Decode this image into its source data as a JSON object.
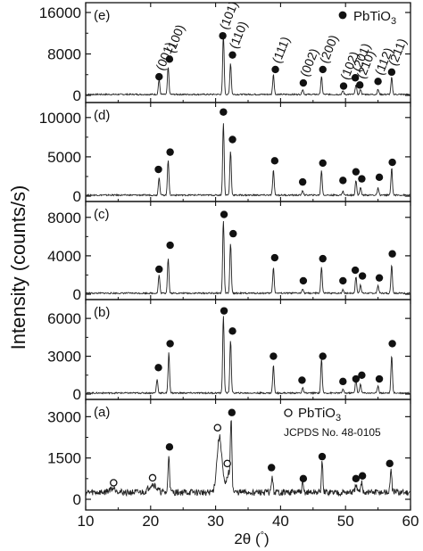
{
  "chart_data": {
    "type": "line",
    "ylabel": "Intensity (counts/s)",
    "xlabel_prefix": "2θ (",
    "xlabel_unit": "°",
    "xlabel_suffix": ")",
    "xlim": [
      10,
      60
    ],
    "x_ticks": [
      10,
      20,
      30,
      40,
      50,
      60
    ],
    "panels": [
      {
        "tag": "(e)",
        "ylim": [
          0,
          16000
        ],
        "y_ticks": [
          0,
          8000,
          16000
        ],
        "legend": "PbTiO",
        "legend_sub": "3",
        "legend_marker": "filled-circle",
        "peaks": [
          {
            "x": 21.3,
            "y": 2900,
            "label": "(001)"
          },
          {
            "x": 22.7,
            "y": 5200,
            "label": "(100)"
          },
          {
            "x": 31.2,
            "y": 11500,
            "label": "(101)"
          },
          {
            "x": 32.3,
            "y": 6000,
            "label": "(110)"
          },
          {
            "x": 38.9,
            "y": 3900,
            "label": "(111)"
          },
          {
            "x": 43.4,
            "y": 1000,
            "label": "(002)"
          },
          {
            "x": 46.3,
            "y": 3400,
            "label": "(200)"
          },
          {
            "x": 49.6,
            "y": 700,
            "label": "(102)"
          },
          {
            "x": 51.6,
            "y": 1900,
            "label": "(201)"
          },
          {
            "x": 52.3,
            "y": 1000,
            "label": "(210)"
          },
          {
            "x": 55.0,
            "y": 1000,
            "label": "(112)"
          },
          {
            "x": 57.1,
            "y": 3300,
            "label": "(211)"
          }
        ],
        "markers": [
          {
            "x": 21.3,
            "y": 3600
          },
          {
            "x": 22.9,
            "y": 7000
          },
          {
            "x": 31.1,
            "y": 11500
          },
          {
            "x": 32.6,
            "y": 7800
          },
          {
            "x": 39.2,
            "y": 5000
          },
          {
            "x": 43.5,
            "y": 2400
          },
          {
            "x": 46.5,
            "y": 5000
          },
          {
            "x": 49.7,
            "y": 1800
          },
          {
            "x": 51.5,
            "y": 3400
          },
          {
            "x": 52.2,
            "y": 2000
          },
          {
            "x": 55.0,
            "y": 2700
          },
          {
            "x": 57.1,
            "y": 4500
          }
        ]
      },
      {
        "tag": "(d)",
        "ylim": [
          0,
          11000
        ],
        "y_ticks": [
          0,
          5000,
          10000
        ],
        "peaks": [
          {
            "x": 21.3,
            "y": 2300
          },
          {
            "x": 22.7,
            "y": 4500
          },
          {
            "x": 31.2,
            "y": 9200
          },
          {
            "x": 32.3,
            "y": 5600
          },
          {
            "x": 38.9,
            "y": 3200
          },
          {
            "x": 43.4,
            "y": 600
          },
          {
            "x": 46.3,
            "y": 3100
          },
          {
            "x": 49.6,
            "y": 500
          },
          {
            "x": 51.6,
            "y": 1900
          },
          {
            "x": 52.3,
            "y": 1000
          },
          {
            "x": 55.0,
            "y": 900
          },
          {
            "x": 57.1,
            "y": 3500
          }
        ],
        "markers": [
          {
            "x": 21.2,
            "y": 3400
          },
          {
            "x": 23.0,
            "y": 5600
          },
          {
            "x": 31.2,
            "y": 10700
          },
          {
            "x": 32.6,
            "y": 7200
          },
          {
            "x": 39.1,
            "y": 4500
          },
          {
            "x": 43.4,
            "y": 1800
          },
          {
            "x": 46.5,
            "y": 4200
          },
          {
            "x": 49.6,
            "y": 2000
          },
          {
            "x": 51.6,
            "y": 3100
          },
          {
            "x": 52.5,
            "y": 2200
          },
          {
            "x": 55.2,
            "y": 2400
          },
          {
            "x": 57.2,
            "y": 4300
          }
        ]
      },
      {
        "tag": "(c)",
        "ylim": [
          0,
          9000
        ],
        "y_ticks": [
          0,
          4000,
          8000
        ],
        "peaks": [
          {
            "x": 21.3,
            "y": 1900
          },
          {
            "x": 22.7,
            "y": 3600
          },
          {
            "x": 31.2,
            "y": 7600
          },
          {
            "x": 32.3,
            "y": 5200
          },
          {
            "x": 38.9,
            "y": 2700
          },
          {
            "x": 43.4,
            "y": 500
          },
          {
            "x": 46.3,
            "y": 2700
          },
          {
            "x": 49.6,
            "y": 400
          },
          {
            "x": 51.6,
            "y": 1700
          },
          {
            "x": 52.3,
            "y": 900
          },
          {
            "x": 55.0,
            "y": 800
          },
          {
            "x": 57.1,
            "y": 3000
          }
        ],
        "markers": [
          {
            "x": 21.3,
            "y": 2600
          },
          {
            "x": 23.0,
            "y": 5100
          },
          {
            "x": 31.3,
            "y": 8300
          },
          {
            "x": 32.7,
            "y": 6300
          },
          {
            "x": 39.1,
            "y": 3800
          },
          {
            "x": 43.5,
            "y": 1400
          },
          {
            "x": 46.5,
            "y": 3700
          },
          {
            "x": 49.6,
            "y": 1400
          },
          {
            "x": 51.5,
            "y": 2500
          },
          {
            "x": 52.6,
            "y": 1900
          },
          {
            "x": 55.2,
            "y": 1700
          },
          {
            "x": 57.2,
            "y": 4200
          }
        ]
      },
      {
        "tag": "(b)",
        "ylim": [
          0,
          7000
        ],
        "y_ticks": [
          0,
          3000,
          6000
        ],
        "peaks": [
          {
            "x": 21.0,
            "y": 1100
          },
          {
            "x": 22.8,
            "y": 3200
          },
          {
            "x": 31.2,
            "y": 6100
          },
          {
            "x": 32.3,
            "y": 4200
          },
          {
            "x": 38.9,
            "y": 2200
          },
          {
            "x": 43.4,
            "y": 400
          },
          {
            "x": 46.3,
            "y": 2700
          },
          {
            "x": 49.6,
            "y": 300
          },
          {
            "x": 51.6,
            "y": 1100
          },
          {
            "x": 52.3,
            "y": 700
          },
          {
            "x": 55.0,
            "y": 600
          },
          {
            "x": 57.1,
            "y": 3000
          }
        ],
        "markers": [
          {
            "x": 21.2,
            "y": 2100
          },
          {
            "x": 23.0,
            "y": 4000
          },
          {
            "x": 31.3,
            "y": 6600
          },
          {
            "x": 32.6,
            "y": 5000
          },
          {
            "x": 38.9,
            "y": 3000
          },
          {
            "x": 43.3,
            "y": 1100
          },
          {
            "x": 46.5,
            "y": 3000
          },
          {
            "x": 49.6,
            "y": 1000
          },
          {
            "x": 51.6,
            "y": 1200
          },
          {
            "x": 52.5,
            "y": 1500
          },
          {
            "x": 55.2,
            "y": 1200
          },
          {
            "x": 57.2,
            "y": 4000
          }
        ]
      },
      {
        "tag": "(a)",
        "ylim": [
          0,
          3400
        ],
        "y_ticks": [
          0,
          1500,
          3000
        ],
        "legend": "PbTiO",
        "legend_sub": "3",
        "legend_marker": "open-circle",
        "note": "JCPDS No. 48-0105",
        "baseline": 250,
        "broad_peaks": [
          {
            "x": 14.2,
            "y": 150,
            "w": 0.8
          },
          {
            "x": 20.3,
            "y": 300,
            "w": 0.8
          },
          {
            "x": 30.6,
            "y": 2000,
            "w": 0.55
          },
          {
            "x": 32.0,
            "y": 700,
            "w": 0.4
          }
        ],
        "peaks": [
          {
            "x": 22.8,
            "y": 1400
          },
          {
            "x": 32.4,
            "y": 2500
          },
          {
            "x": 38.7,
            "y": 600
          },
          {
            "x": 43.4,
            "y": 300
          },
          {
            "x": 46.4,
            "y": 1100
          },
          {
            "x": 51.6,
            "y": 300
          },
          {
            "x": 52.5,
            "y": 400
          },
          {
            "x": 57.0,
            "y": 900
          }
        ],
        "markers": [
          {
            "x": 22.9,
            "y": 1900
          },
          {
            "x": 32.5,
            "y": 3150
          },
          {
            "x": 38.6,
            "y": 1150
          },
          {
            "x": 43.5,
            "y": 750
          },
          {
            "x": 46.4,
            "y": 1550
          },
          {
            "x": 51.6,
            "y": 750
          },
          {
            "x": 52.6,
            "y": 850
          },
          {
            "x": 56.8,
            "y": 1300
          }
        ],
        "open_markers": [
          {
            "x": 14.3,
            "y": 600
          },
          {
            "x": 20.3,
            "y": 780
          },
          {
            "x": 30.3,
            "y": 2600
          },
          {
            "x": 31.8,
            "y": 1300
          }
        ]
      }
    ]
  }
}
